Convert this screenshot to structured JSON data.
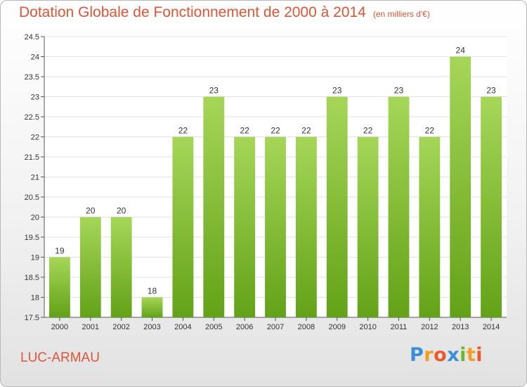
{
  "title": "Dotation Globale de Fonctionnement de 2000 à 2014",
  "subtitle": "(en milliers d'€)",
  "commune": "LUC-ARMAU",
  "logo": {
    "text": "Proxiti",
    "letters": [
      {
        "ch": "P",
        "color": "#3b8fd6"
      },
      {
        "ch": "r",
        "color": "#f0a020"
      },
      {
        "ch": "o",
        "color": "#e85a2a"
      },
      {
        "ch": "x",
        "color": "#3b8fd6"
      },
      {
        "ch": "i",
        "color": "#6bb82c"
      },
      {
        "ch": "t",
        "color": "#f0a020"
      },
      {
        "ch": "i",
        "color": "#e85a2a"
      }
    ]
  },
  "colors": {
    "accent": "#d9573a",
    "bar_top": "#a6d658",
    "bar_bottom": "#62a218",
    "grid": "#e2e2e2"
  },
  "chart_data": {
    "type": "bar",
    "categories": [
      "2000",
      "2001",
      "2002",
      "2003",
      "2004",
      "2005",
      "2006",
      "2007",
      "2008",
      "2009",
      "2010",
      "2011",
      "2012",
      "2013",
      "2014"
    ],
    "values": [
      19,
      20,
      20,
      18,
      22,
      23,
      22,
      22,
      22,
      23,
      22,
      23,
      22,
      24,
      23
    ],
    "value_labels": [
      "19",
      "20",
      "20",
      "18",
      "22",
      "23",
      "22",
      "22",
      "22",
      "23",
      "22",
      "23",
      "22",
      "24",
      "23"
    ],
    "ylim": [
      17.5,
      24.5
    ],
    "yticks": [
      17.5,
      18,
      18.5,
      19,
      19.5,
      20,
      20.5,
      21,
      21.5,
      22,
      22.5,
      23,
      23.5,
      24,
      24.5
    ],
    "ytick_labels": [
      "17.5",
      "18",
      "18.5",
      "19",
      "19.5",
      "20",
      "20.5",
      "21",
      "21.5",
      "22",
      "22.5",
      "23",
      "23.5",
      "24",
      "24.5"
    ],
    "grid": true
  }
}
